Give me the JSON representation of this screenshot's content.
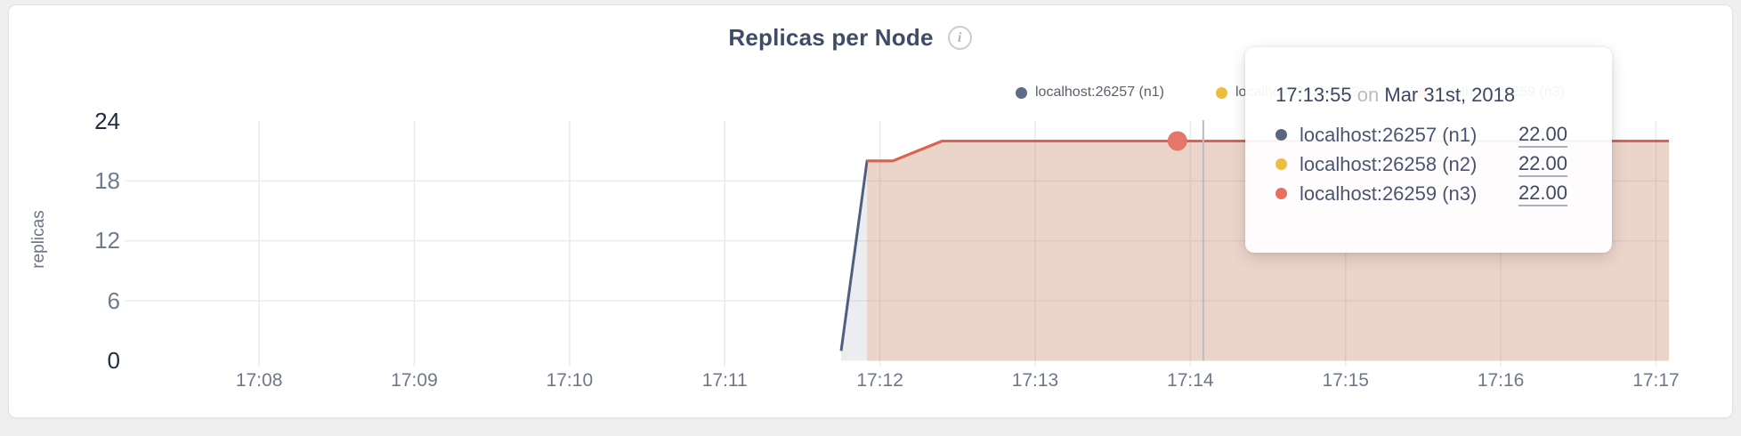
{
  "card": {
    "title": "Replicas per Node",
    "info_icon": "i"
  },
  "y_axis_label": "replicas",
  "legend": [
    {
      "label": "localhost:26257 (n1)",
      "color": "#5f6c87"
    },
    {
      "label": "localhost:26258 (n2)",
      "color": "#eebd3e"
    },
    {
      "label": "localhost:26259 (n3)",
      "color": "#ea6e62"
    }
  ],
  "tooltip": {
    "time": "17:13:55",
    "on_word": "on",
    "date": "Mar 31st, 2018",
    "rows": [
      {
        "label": "localhost:26257 (n1)",
        "value": "22.00",
        "color": "#5a6781"
      },
      {
        "label": "localhost:26258 (n2)",
        "value": "22.00",
        "color": "#eebd3e"
      },
      {
        "label": "localhost:26259 (n3)",
        "value": "22.00",
        "color": "#ea6e62"
      }
    ]
  },
  "chart_data": {
    "type": "area",
    "title": "Replicas per Node",
    "xlabel": "",
    "ylabel": "replicas",
    "x_ticks": [
      "17:08",
      "17:09",
      "17:10",
      "17:11",
      "17:12",
      "17:13",
      "17:14",
      "17:15",
      "17:16",
      "17:17"
    ],
    "y_ticks": [
      {
        "label": "0",
        "value": 0,
        "dark": true,
        "grid": false
      },
      {
        "label": "6",
        "value": 6,
        "dark": false,
        "grid": true
      },
      {
        "label": "12",
        "value": 12,
        "dark": false,
        "grid": true
      },
      {
        "label": "18",
        "value": 18,
        "dark": false,
        "grid": true
      },
      {
        "label": "24",
        "value": 24,
        "dark": true,
        "grid": false
      }
    ],
    "x_range": [
      "17:07:08",
      "17:17:05"
    ],
    "y_range": [
      0,
      24
    ],
    "grid": true,
    "legend_position": "top-right",
    "series": [
      {
        "name": "localhost:26257 (n1)",
        "color": "#4f5e80",
        "fill": "rgba(95,108,135,0.12)",
        "points": [
          [
            "17:11:45",
            1
          ],
          [
            "17:11:55",
            20
          ],
          [
            "17:12:05",
            20
          ],
          [
            "17:12:24",
            22
          ],
          [
            "17:17:05",
            22
          ]
        ]
      },
      {
        "name": "localhost:26258 (n2)",
        "color": "#f0ba2e",
        "fill": "rgba(242,190,44,0.08)",
        "points": [
          [
            "17:11:55",
            20
          ],
          [
            "17:12:05",
            20
          ],
          [
            "17:12:24",
            22
          ],
          [
            "17:17:05",
            22
          ]
        ]
      },
      {
        "name": "localhost:26259 (n3)",
        "color": "#dd6154",
        "fill": "rgba(228,110,95,0.16)",
        "points": [
          [
            "17:11:55",
            20
          ],
          [
            "17:12:05",
            20
          ],
          [
            "17:12:24",
            22
          ],
          [
            "17:17:05",
            22
          ]
        ]
      }
    ],
    "hover": {
      "point_time": "17:13:55",
      "point_value": 22,
      "point_series": "localhost:26259 (n3)",
      "dot_color": "#e4766a",
      "guideline_time": "17:14:05",
      "guideline_color": "#b9bdc3"
    }
  }
}
